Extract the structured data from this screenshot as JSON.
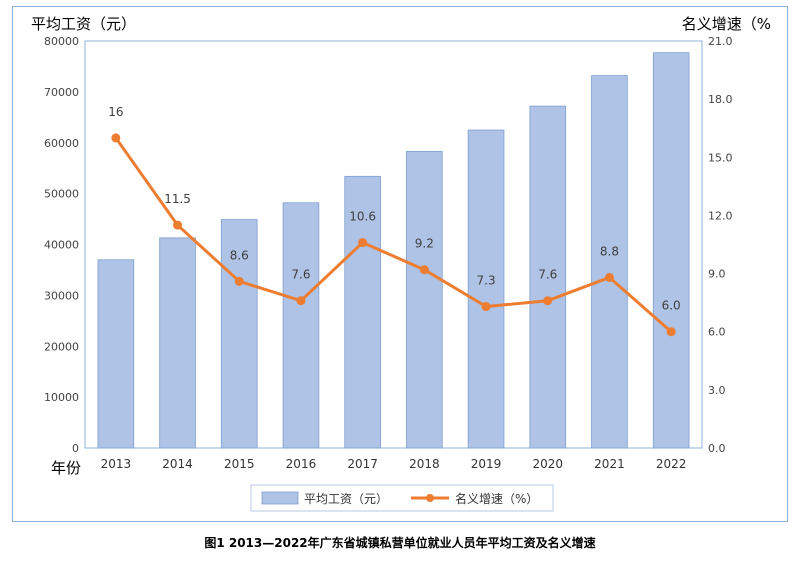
{
  "caption": "图1  2013—2022年广东省城镇私营单位就业人员年平均工资及名义增速",
  "chart_data": {
    "type": "bar+line",
    "xlabel": "年份",
    "categories": [
      "2013",
      "2014",
      "2015",
      "2016",
      "2017",
      "2018",
      "2019",
      "2020",
      "2021",
      "2022"
    ],
    "y_left": {
      "label": "平均工资（元）",
      "range": [
        0,
        80000
      ],
      "ticks": [
        0,
        10000,
        20000,
        30000,
        40000,
        50000,
        60000,
        70000,
        80000
      ]
    },
    "y_right": {
      "label": "名义增速（%",
      "range": [
        0,
        21
      ],
      "ticks": [
        "0.0",
        "3.0",
        "6.0",
        "9.0",
        "12.0",
        "15.0",
        "18.0",
        "21.0"
      ]
    },
    "series": [
      {
        "name": "平均工资（元）",
        "type": "bar",
        "axis": "left",
        "color": "#aec3e6",
        "values": [
          37000,
          41300,
          44900,
          48200,
          53400,
          58300,
          62500,
          67200,
          73200,
          77700
        ]
      },
      {
        "name": "名义增速（%）",
        "type": "line",
        "axis": "right",
        "color": "#ed7d31",
        "values": [
          16,
          11.5,
          8.6,
          7.6,
          10.6,
          9.2,
          7.3,
          7.6,
          8.8,
          6.0
        ],
        "labels": [
          "16",
          "11.5",
          "8.6",
          "7.6",
          "10.6",
          "9.2",
          "7.3",
          "7.6",
          "8.8",
          "6.0"
        ]
      }
    ],
    "legend": {
      "position": "bottom",
      "entries": [
        "平均工资（元）",
        "名义增速（%）"
      ]
    },
    "grid": false
  }
}
